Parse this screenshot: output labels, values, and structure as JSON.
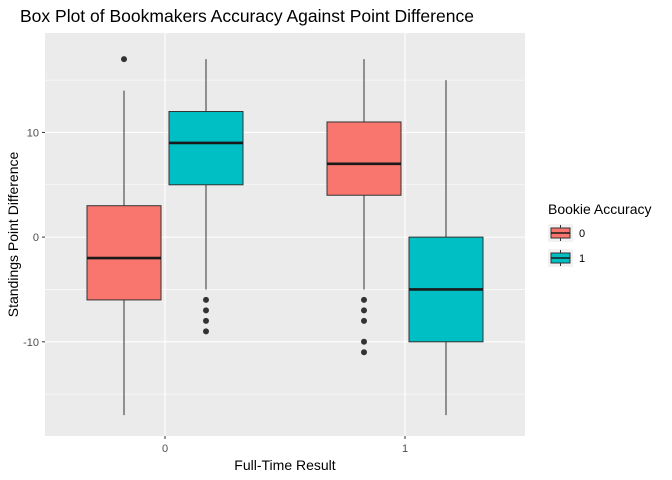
{
  "chart_data": {
    "type": "box",
    "title": "Box Plot of Bookmakers Accuracy Against Point Difference",
    "xlabel": "Full-Time Result",
    "ylabel": "Standings Point Difference",
    "categories": [
      "0",
      "1"
    ],
    "ylim": [
      -19,
      19.5
    ],
    "yticks": [
      -10,
      0,
      10
    ],
    "grid": true,
    "legend": {
      "title": "Bookie Accuracy",
      "placement": "right",
      "entries": [
        {
          "label": "0",
          "color": "#F8766D"
        },
        {
          "label": "1",
          "color": "#00BFC4"
        }
      ]
    },
    "series": [
      {
        "name": "0",
        "color": "#F8766D",
        "boxes": [
          {
            "category": "0",
            "min": -17,
            "q1": -6,
            "median": -2,
            "q3": 3,
            "max": 14,
            "outliers": [
              17
            ]
          },
          {
            "category": "1",
            "min": -5,
            "q1": 4,
            "median": 7,
            "q3": 11,
            "max": 17,
            "outliers": [
              -6,
              -7,
              -8,
              -10,
              -11
            ]
          }
        ]
      },
      {
        "name": "1",
        "color": "#00BFC4",
        "boxes": [
          {
            "category": "0",
            "min": -5,
            "q1": 5,
            "median": 9,
            "q3": 12,
            "max": 17,
            "outliers": [
              -6,
              -7,
              -8,
              -9
            ]
          },
          {
            "category": "1",
            "min": -17,
            "q1": -10,
            "median": -5,
            "q3": 0,
            "max": 15,
            "outliers": []
          }
        ]
      }
    ]
  }
}
